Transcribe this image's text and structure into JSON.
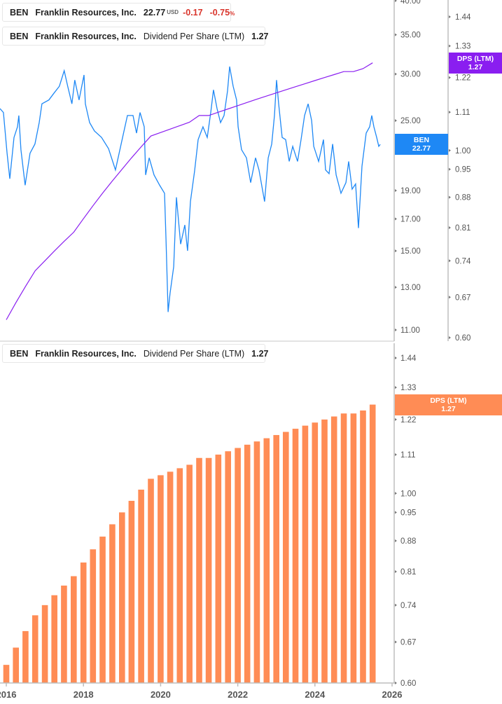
{
  "colors": {
    "price": "#1e88f5",
    "dps_line": "#8a1ef0",
    "dps_bar": "#ff8c55",
    "axis": "#bdbdbd"
  },
  "legend_price": {
    "ticker": "BEN",
    "company": "Franklin Resources, Inc.",
    "price": "22.77",
    "currency": "USD",
    "change": "-0.17",
    "change_pct": "-0.75",
    "pct_sign": "%"
  },
  "legend_dps_top": {
    "ticker": "BEN",
    "company": "Franklin Resources, Inc.",
    "metric": "Dividend Per Share (LTM)",
    "value": "1.27"
  },
  "legend_dps_bottom": {
    "ticker": "BEN",
    "company": "Franklin Resources, Inc.",
    "metric": "Dividend Per Share (LTM)",
    "value": "1.27"
  },
  "tags": {
    "price_name": "BEN",
    "price_value": "22.77",
    "dps_name": "DPS (LTM)",
    "dps_value": "1.27",
    "dps_bottom_name": "DPS (LTM)",
    "dps_bottom_value": "1.27"
  },
  "chart_data": [
    {
      "type": "line",
      "scale": "log",
      "y_left_ticks": [
        "40.00",
        "35.00",
        "30.00",
        "25.00",
        "19.00",
        "17.00",
        "15.00",
        "13.00",
        "11.00"
      ],
      "y_left_range": [
        11,
        40
      ],
      "y_right_ticks": [
        "1.44",
        "1.33",
        "1.22",
        "1.11",
        "1.00",
        "0.95",
        "0.88",
        "0.81",
        "0.74",
        "0.67",
        "0.60"
      ],
      "y_right_range": [
        0.6,
        1.44
      ],
      "x_range": [
        "2016-01-01",
        "2026-01-01"
      ],
      "series": [
        {
          "name": "BEN",
          "axis": "left",
          "points": [
            [
              "2015-11-02",
              26.2
            ],
            [
              "2015-12-05",
              25.8
            ],
            [
              "2016-01-08",
              22.0
            ],
            [
              "2016-02-03",
              19.9
            ],
            [
              "2016-03-14",
              23.4
            ],
            [
              "2016-04-16",
              24.4
            ],
            [
              "2016-04-29",
              25.5
            ],
            [
              "2016-05-19",
              22.3
            ],
            [
              "2016-06-28",
              19.4
            ],
            [
              "2016-08-13",
              22.0
            ],
            [
              "2016-09-29",
              22.8
            ],
            [
              "2016-11-08",
              24.8
            ],
            [
              "2016-12-04",
              26.7
            ],
            [
              "2017-02-08",
              27.1
            ],
            [
              "2017-04-01",
              27.9
            ],
            [
              "2017-05-18",
              28.6
            ],
            [
              "2017-07-03",
              30.4
            ],
            [
              "2017-08-05",
              28.6
            ],
            [
              "2017-09-14",
              26.7
            ],
            [
              "2017-10-11",
              29.3
            ],
            [
              "2017-11-20",
              27.1
            ],
            [
              "2018-01-06",
              29.9
            ],
            [
              "2018-01-19",
              26.7
            ],
            [
              "2018-02-28",
              24.8
            ],
            [
              "2018-04-15",
              24.0
            ],
            [
              "2018-06-21",
              23.4
            ],
            [
              "2018-08-26",
              22.4
            ],
            [
              "2018-10-31",
              20.6
            ],
            [
              "2019-01-06",
              23.4
            ],
            [
              "2019-02-21",
              25.5
            ],
            [
              "2019-04-15",
              25.5
            ],
            [
              "2019-05-18",
              23.8
            ],
            [
              "2019-06-20",
              25.8
            ],
            [
              "2019-07-30",
              24.4
            ],
            [
              "2019-08-12",
              20.2
            ],
            [
              "2019-09-15",
              21.6
            ],
            [
              "2019-10-31",
              20.2
            ],
            [
              "2019-12-23",
              19.4
            ],
            [
              "2020-02-07",
              18.8
            ],
            [
              "2020-02-21",
              15.7
            ],
            [
              "2020-03-12",
              11.8
            ],
            [
              "2020-03-31",
              12.7
            ],
            [
              "2020-05-04",
              14.1
            ],
            [
              "2020-05-30",
              18.5
            ],
            [
              "2020-07-09",
              15.4
            ],
            [
              "2020-08-18",
              16.6
            ],
            [
              "2020-09-13",
              15.0
            ],
            [
              "2020-10-10",
              18.2
            ],
            [
              "2020-11-18",
              20.5
            ],
            [
              "2020-12-22",
              23.2
            ],
            [
              "2021-02-06",
              24.4
            ],
            [
              "2021-03-18",
              23.4
            ],
            [
              "2021-04-20",
              25.8
            ],
            [
              "2021-05-16",
              28.2
            ],
            [
              "2021-06-19",
              26.2
            ],
            [
              "2021-07-22",
              24.8
            ],
            [
              "2021-08-24",
              25.5
            ],
            [
              "2021-09-26",
              28.1
            ],
            [
              "2021-10-16",
              30.9
            ],
            [
              "2021-11-18",
              28.6
            ],
            [
              "2021-12-21",
              27.1
            ],
            [
              "2022-01-04",
              24.4
            ],
            [
              "2022-02-06",
              22.3
            ],
            [
              "2022-03-24",
              21.6
            ],
            [
              "2022-05-03",
              19.6
            ],
            [
              "2022-06-18",
              21.6
            ],
            [
              "2022-07-21",
              20.6
            ],
            [
              "2022-09-12",
              18.2
            ],
            [
              "2022-10-16",
              21.6
            ],
            [
              "2022-11-18",
              22.8
            ],
            [
              "2022-12-14",
              25.5
            ],
            [
              "2023-01-03",
              29.3
            ],
            [
              "2023-01-23",
              26.7
            ],
            [
              "2023-02-25",
              23.4
            ],
            [
              "2023-03-30",
              23.2
            ],
            [
              "2023-05-03",
              21.3
            ],
            [
              "2023-06-05",
              22.6
            ],
            [
              "2023-07-21",
              21.3
            ],
            [
              "2023-08-23",
              23.2
            ],
            [
              "2023-09-25",
              25.5
            ],
            [
              "2023-10-29",
              26.7
            ],
            [
              "2023-12-01",
              25.0
            ],
            [
              "2023-12-21",
              22.6
            ],
            [
              "2024-02-05",
              21.3
            ],
            [
              "2024-03-22",
              23.2
            ],
            [
              "2024-04-11",
              20.6
            ],
            [
              "2024-05-14",
              20.3
            ],
            [
              "2024-06-17",
              22.8
            ],
            [
              "2024-07-20",
              20.2
            ],
            [
              "2024-09-04",
              18.8
            ],
            [
              "2024-10-21",
              19.6
            ],
            [
              "2024-11-16",
              21.3
            ],
            [
              "2024-12-19",
              19.1
            ],
            [
              "2025-01-21",
              19.5
            ],
            [
              "2025-02-17",
              16.4
            ],
            [
              "2025-03-22",
              20.9
            ],
            [
              "2025-05-01",
              23.8
            ],
            [
              "2025-06-03",
              24.4
            ],
            [
              "2025-06-23",
              25.5
            ],
            [
              "2025-07-13",
              24.4
            ],
            [
              "2025-08-08",
              23.4
            ],
            [
              "2025-08-28",
              22.6
            ],
            [
              "2025-09-11",
              22.77
            ]
          ]
        },
        {
          "name": "DPS (LTM)",
          "axis": "right",
          "ref": "dps"
        }
      ]
    },
    {
      "type": "bar",
      "scale": "log",
      "y_ticks": [
        "1.44",
        "1.33",
        "1.22",
        "1.11",
        "1.00",
        "0.95",
        "0.88",
        "0.81",
        "0.74",
        "0.67",
        "0.60"
      ],
      "y_range": [
        0.6,
        1.44
      ],
      "x_ticks": [
        "2016",
        "2018",
        "2020",
        "2022",
        "2024",
        "2026"
      ],
      "x_range": [
        "2016-01-01",
        "2026-01-01"
      ],
      "series": [
        {
          "name": "DPS (LTM)",
          "id": "dps",
          "dates": [
            "2016-01-01",
            "2016-04-01",
            "2016-07-01",
            "2016-10-01",
            "2017-01-01",
            "2017-04-01",
            "2017-07-01",
            "2017-10-01",
            "2018-01-01",
            "2018-04-01",
            "2018-07-01",
            "2018-10-01",
            "2019-01-01",
            "2019-04-01",
            "2019-07-01",
            "2019-10-01",
            "2020-01-01",
            "2020-04-01",
            "2020-07-01",
            "2020-10-01",
            "2021-01-01",
            "2021-04-01",
            "2021-07-01",
            "2021-10-01",
            "2022-01-01",
            "2022-04-01",
            "2022-07-01",
            "2022-10-01",
            "2023-01-01",
            "2023-04-01",
            "2023-07-01",
            "2023-10-01",
            "2024-01-01",
            "2024-04-01",
            "2024-07-01",
            "2024-10-01",
            "2025-01-01",
            "2025-04-01",
            "2025-07-01"
          ],
          "values": [
            0.63,
            0.66,
            0.69,
            0.72,
            0.74,
            0.76,
            0.78,
            0.8,
            0.83,
            0.86,
            0.89,
            0.92,
            0.95,
            0.98,
            1.01,
            1.04,
            1.05,
            1.06,
            1.07,
            1.08,
            1.1,
            1.1,
            1.11,
            1.12,
            1.13,
            1.14,
            1.15,
            1.16,
            1.17,
            1.18,
            1.19,
            1.2,
            1.21,
            1.22,
            1.23,
            1.24,
            1.24,
            1.25,
            1.27
          ]
        }
      ]
    }
  ]
}
